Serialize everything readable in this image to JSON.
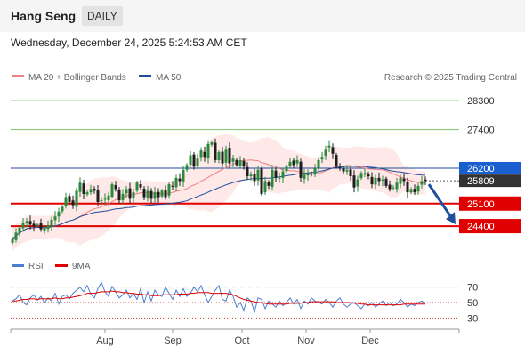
{
  "header": {
    "title": "Hang Seng",
    "timeframe": "DAILY"
  },
  "datetime": "Wednesday, December 24, 2025 5:24:53 AM CET",
  "copyright": "Research © 2025 Trading Central",
  "colors": {
    "candle_up": "#2a8a3a",
    "candle_down": "#1e1e1e",
    "ma20": "#f08080",
    "bollinger_fill": "#fde0e0",
    "ma50": "#1f4e9a",
    "resistance": "#7ac46a",
    "support": "#e00000",
    "pivot": "#1f4e9a",
    "rsi": "#4a7fd0",
    "rsi_ma": "#e00000",
    "arrow": "#1f4e9a"
  },
  "chart_data": [
    {
      "type": "candlestick",
      "title": "Hang Seng",
      "legend": [
        "MA 20 + Bollinger Bands",
        "MA 50"
      ],
      "legend_placement": "top-left",
      "y_range": [
        23600,
        28800
      ],
      "x_ticks": [
        "Aug",
        "Sep",
        "Oct",
        "Nov",
        "Dec"
      ],
      "levels": [
        {
          "value": 28300,
          "label": "28300",
          "kind": "resistance"
        },
        {
          "value": 27400,
          "label": "27400",
          "kind": "resistance"
        },
        {
          "value": 26200,
          "label": "26200",
          "kind": "pivot"
        },
        {
          "value": 25809,
          "label": "25809",
          "kind": "last"
        },
        {
          "value": 25100,
          "label": "25100",
          "kind": "support"
        },
        {
          "value": 24400,
          "label": "24400",
          "kind": "support"
        }
      ],
      "last_price": 25809,
      "series_close": [
        24000,
        24200,
        24350,
        24500,
        24550,
        24450,
        24400,
        24450,
        24300,
        24350,
        24420,
        24600,
        24700,
        24850,
        25000,
        25300,
        25150,
        25050,
        25500,
        25750,
        25400,
        25450,
        25550,
        25500,
        25150,
        25200,
        25250,
        25350,
        25700,
        25550,
        25200,
        25400,
        25550,
        25250,
        25450,
        25750,
        25600,
        25300,
        25500,
        25250,
        25450,
        25300,
        25500,
        25300,
        25700,
        25650,
        25900,
        25800,
        26150,
        26300,
        26600,
        26250,
        26500,
        26750,
        26550,
        26950,
        27000,
        26450,
        26700,
        26350,
        26800,
        26350,
        26500,
        26300,
        26450,
        26250,
        25950,
        26000,
        25800,
        26150,
        25400,
        25800,
        25650,
        26150,
        25900,
        25900,
        26100,
        26250,
        26400,
        26300,
        26450,
        25900,
        26000,
        26050,
        26000,
        26200,
        26450,
        26550,
        26800,
        26900,
        26650,
        26250,
        26200,
        26100,
        26150,
        25950,
        25600,
        25850,
        26050,
        26050,
        25950,
        25700,
        25900,
        25800,
        25850,
        25650,
        25550,
        25600,
        25750,
        25900,
        25800,
        25450,
        25550,
        25450,
        25650,
        25800,
        25809
      ],
      "rsi": {
        "legend": [
          "RSI",
          "9MA"
        ],
        "ticks": [
          70,
          50,
          30
        ],
        "range": [
          20,
          80
        ],
        "rsi_values": [
          52,
          55,
          60,
          50,
          47,
          56,
          60,
          53,
          58,
          50,
          56,
          52,
          62,
          48,
          58,
          60,
          55,
          62,
          66,
          70,
          64,
          72,
          61,
          56,
          68,
          76,
          64,
          58,
          71,
          64,
          56,
          60,
          66,
          56,
          62,
          54,
          68,
          50,
          64,
          52,
          66,
          60,
          58,
          70,
          62,
          54,
          66,
          58,
          68,
          58,
          62,
          70,
          64,
          72,
          60,
          50,
          58,
          66,
          72,
          54,
          52,
          66,
          58,
          44,
          50,
          40,
          56,
          52,
          38,
          56,
          54,
          42,
          52,
          48,
          44,
          52,
          46,
          50,
          56,
          48,
          54,
          42,
          52,
          48,
          56,
          52,
          50,
          48,
          54,
          50,
          44,
          52,
          56,
          48,
          44,
          48,
          50,
          46,
          42,
          48,
          46,
          50,
          44,
          48,
          52,
          46,
          50,
          46,
          48,
          54,
          50,
          44,
          48,
          46,
          50,
          52,
          49
        ],
        "ma9_values": [
          52,
          52,
          53,
          54,
          54,
          55,
          55,
          54,
          55,
          55,
          55,
          55,
          56,
          55,
          55,
          56,
          56,
          57,
          58,
          59,
          60,
          62,
          62,
          62,
          63,
          64,
          64,
          64,
          65,
          64,
          64,
          63,
          63,
          62,
          62,
          61,
          61,
          60,
          60,
          59,
          59,
          59,
          60,
          60,
          60,
          60,
          60,
          61,
          61,
          61,
          62,
          62,
          63,
          63,
          63,
          63,
          62,
          62,
          62,
          62,
          62,
          61,
          60,
          58,
          56,
          54,
          53,
          52,
          51,
          50,
          50,
          49,
          48,
          48,
          48,
          48,
          48,
          48,
          49,
          49,
          49,
          49,
          50,
          50,
          51,
          51,
          51,
          51,
          51,
          51,
          51,
          50,
          50,
          50,
          50,
          50,
          49,
          49,
          48,
          48,
          47,
          47,
          47,
          47,
          47,
          47,
          47,
          47,
          47,
          47,
          48,
          48,
          48,
          48,
          48,
          48,
          48
        ]
      }
    }
  ]
}
